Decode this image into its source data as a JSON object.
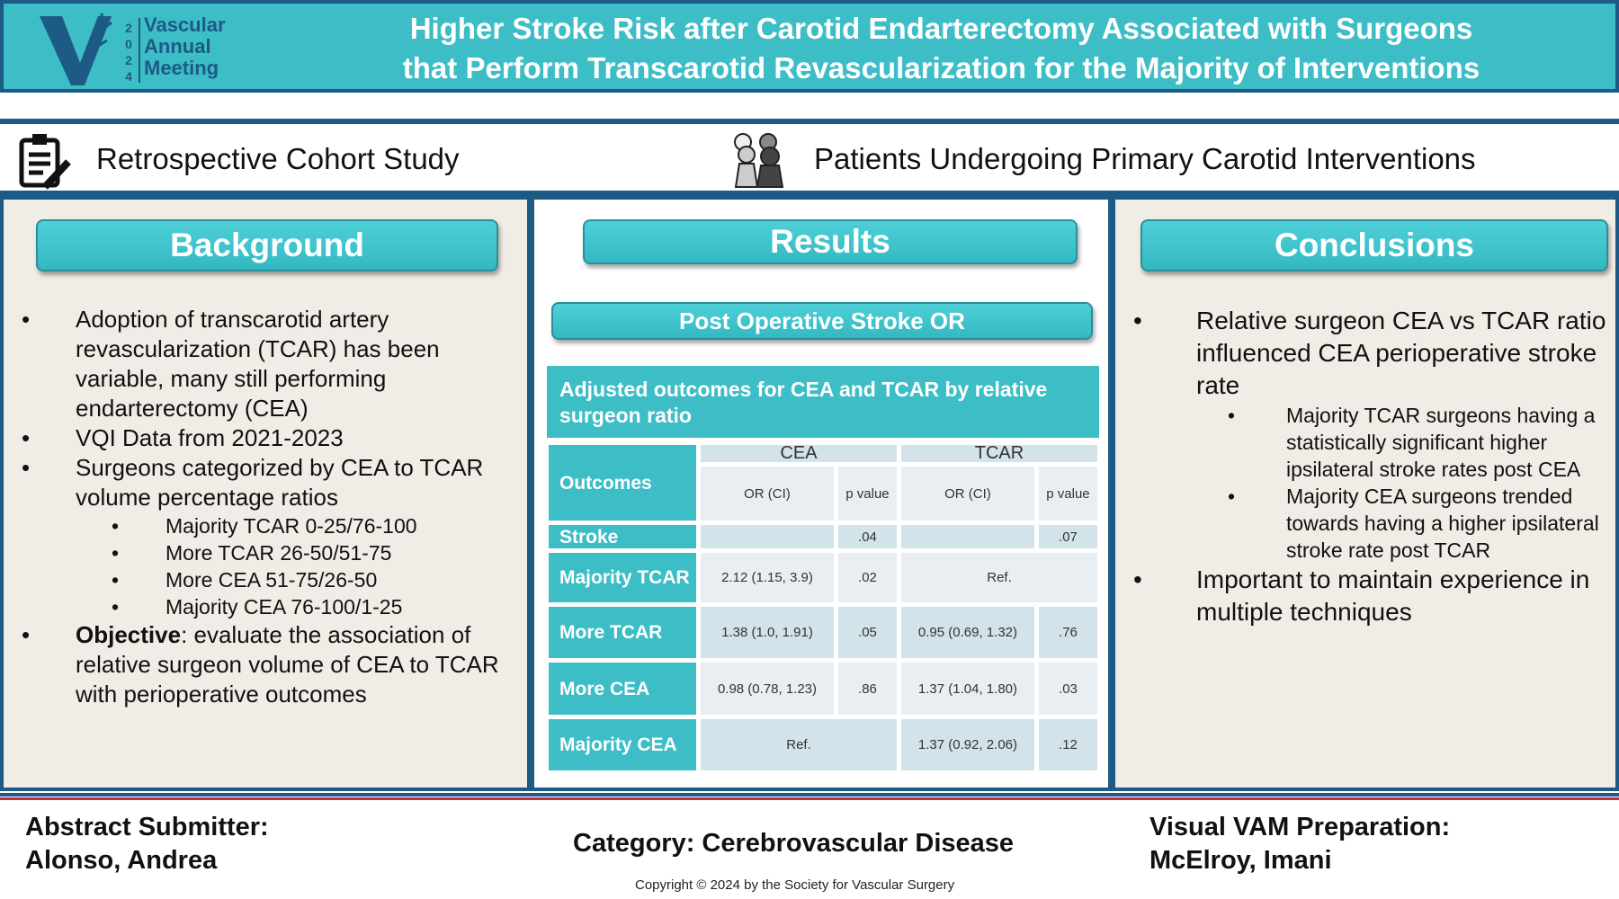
{
  "header": {
    "logo_text": [
      "Vascular",
      "Annual",
      "Meeting"
    ],
    "logo_year": "2024",
    "title_line1": "Higher Stroke Risk after Carotid Endarterectomy Associated with Surgeons",
    "title_line2": "that Perform Transcarotid Revascularization for the Majority of Interventions",
    "colors": {
      "teal": "#3dbdc6",
      "navy": "#1d5a85"
    }
  },
  "study": {
    "design": "Retrospective Cohort Study",
    "population": "Patients Undergoing  Primary Carotid Interventions",
    "icons": [
      "clipboard-icon",
      "people-group-icon"
    ]
  },
  "background": {
    "heading": "Background",
    "bullets": [
      "Adoption of transcarotid artery revascularization (TCAR) has been variable, many still performing endarterectomy (CEA)",
      "VQI Data from 2021-2023",
      "Surgeons categorized by CEA to TCAR volume percentage ratios"
    ],
    "sub": [
      "Majority TCAR 0-25/76-100",
      "More TCAR 26-50/51-75",
      "More CEA 51-75/26-50",
      "Majority CEA 76-100/1-25"
    ],
    "objective_label": "Objective",
    "objective_text": ": evaluate the association of relative surgeon volume of CEA to TCAR with perioperative outcomes"
  },
  "results": {
    "heading": "Results",
    "subheading": "Post Operative Stroke OR",
    "table_title": "Adjusted outcomes for CEA and TCAR by relative surgeon ratio",
    "table": {
      "outcomes": "Outcomes",
      "groups": [
        "CEA",
        "TCAR"
      ],
      "cols": [
        "OR (CI)",
        "p value",
        "OR (CI)",
        "p value"
      ],
      "rows": [
        {
          "label": "Stroke",
          "cea_or": "",
          "cea_p": ".04",
          "tcar_or": "",
          "tcar_p": ".07"
        },
        {
          "label": "Majority TCAR",
          "cea_or": "2.12 (1.15, 3.9)",
          "cea_p": ".02",
          "tcar_ref": "Ref."
        },
        {
          "label": "More TCAR",
          "cea_or": "1.38 (1.0, 1.91)",
          "cea_p": ".05",
          "tcar_or": "0.95 (0.69, 1.32)",
          "tcar_p": ".76"
        },
        {
          "label": "More CEA",
          "cea_or": "0.98 (0.78, 1.23)",
          "cea_p": ".86",
          "tcar_or": "1.37 (1.04, 1.80)",
          "tcar_p": ".03"
        },
        {
          "label": "Majority CEA",
          "cea_ref": "Ref.",
          "tcar_or": "1.37 (0.92, 2.06)",
          "tcar_p": ".12"
        }
      ]
    }
  },
  "conclusions": {
    "heading": "Conclusions",
    "b1": "Relative surgeon CEA vs TCAR ratio influenced CEA perioperative stroke rate",
    "sub": [
      "Majority TCAR surgeons having a statistically significant higher ipsilateral stroke rates post CEA",
      "Majority CEA surgeons trended towards having a higher ipsilateral stroke rate post TCAR"
    ],
    "b2": "Important to maintain experience in multiple techniques"
  },
  "footer": {
    "submitter_label": "Abstract Submitter:",
    "submitter": "Alonso, Andrea",
    "category": "Category: Cerebrovascular Disease",
    "prep_label": "Visual VAM Preparation:",
    "prep": "McElroy, Imani",
    "copyright": "Copyright © 2024 by the Society for Vascular Surgery"
  }
}
